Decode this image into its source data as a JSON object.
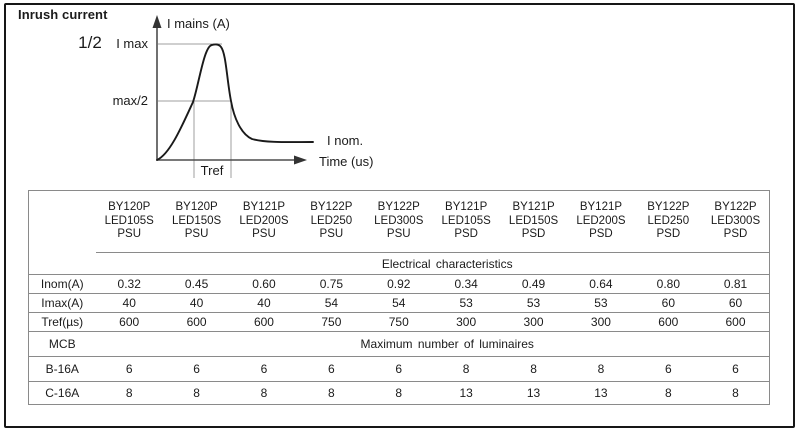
{
  "page": {
    "title": "Inrush current",
    "fraction_note": "1/2"
  },
  "chart": {
    "type": "line-schematic",
    "y_axis_label": "I mains (A)",
    "x_axis_label": "Time (us)",
    "peak_label": "I max",
    "half_peak_label": "max/2",
    "nominal_label": "I nom.",
    "pulse_width_label": "Tref",
    "description": "Schematic inrush current pulse: rises to I max, Tref is pulse width at max/2, settles to I nom."
  },
  "table": {
    "section_electrical": "Electrical characteristics",
    "section_luminaires": "Maximum number of luminaires",
    "columns": [
      "BY120P\nLED105S\nPSU",
      "BY120P\nLED150S\nPSU",
      "BY121P\nLED200S\nPSU",
      "BY122P\nLED250\nPSU",
      "BY122P\nLED300S\nPSU",
      "BY121P\nLED105S\nPSD",
      "BY121P\nLED150S\nPSD",
      "BY121P\nLED200S\nPSD",
      "BY122P\nLED250\nPSD",
      "BY122P\nLED300S\nPSD"
    ],
    "rows": [
      {
        "label": "Inom(A)",
        "values": [
          "0.32",
          "0.45",
          "0.60",
          "0.75",
          "0.92",
          "0.34",
          "0.49",
          "0.64",
          "0.80",
          "0.81"
        ]
      },
      {
        "label": "Imax(A)",
        "values": [
          "40",
          "40",
          "40",
          "54",
          "54",
          "53",
          "53",
          "53",
          "60",
          "60"
        ]
      },
      {
        "label": "Tref(µs)",
        "values": [
          "600",
          "600",
          "600",
          "750",
          "750",
          "300",
          "300",
          "300",
          "600",
          "600"
        ]
      },
      {
        "label": "MCB"
      },
      {
        "label": "B-16A",
        "values": [
          "6",
          "6",
          "6",
          "6",
          "6",
          "8",
          "8",
          "8",
          "6",
          "6"
        ]
      },
      {
        "label": "C-16A",
        "values": [
          "8",
          "8",
          "8",
          "8",
          "8",
          "13",
          "13",
          "13",
          "8",
          "8"
        ]
      }
    ]
  },
  "colors": {
    "frame": "#161616",
    "table_line": "#8a8a8a",
    "curve": "#1a1a1a",
    "reference_line": "#9f9f9f",
    "axis": "#4d4d4d",
    "text": "#1b1b1b"
  }
}
